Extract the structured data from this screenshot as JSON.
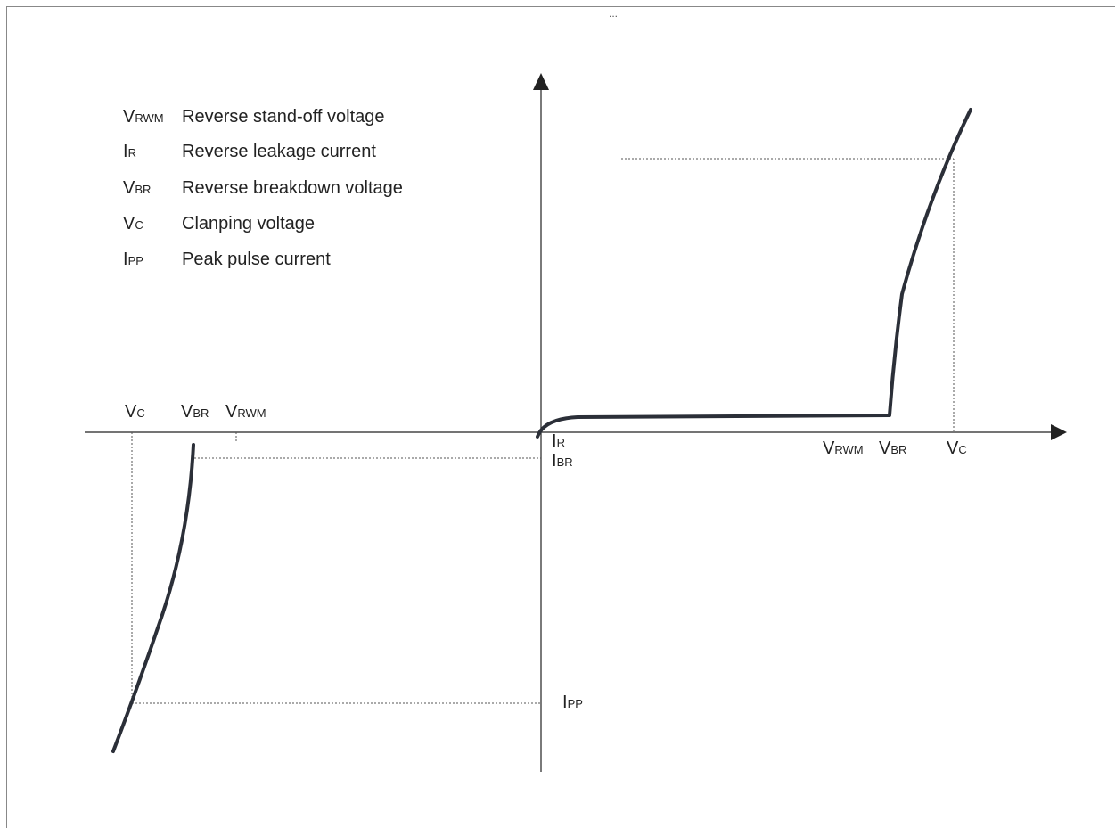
{
  "top_marker": "...",
  "legend": [
    {
      "base": "V",
      "sub": "RWM",
      "desc": "Reverse stand-off voltage"
    },
    {
      "base": "I",
      "sub": "R",
      "desc": "Reverse leakage current"
    },
    {
      "base": "V",
      "sub": "BR",
      "desc": "Reverse breakdown voltage"
    },
    {
      "base": "V",
      "sub": "C",
      "desc": "Clanping voltage"
    },
    {
      "base": "I",
      "sub": "PP",
      "desc": "Peak pulse current"
    }
  ],
  "labels": {
    "neg_vc": {
      "base": "V",
      "sub": "C"
    },
    "neg_vbr": {
      "base": "V",
      "sub": "BR"
    },
    "neg_vrwm": {
      "base": "V",
      "sub": "RWM"
    },
    "ir": {
      "base": "I",
      "sub": "R"
    },
    "ibr": {
      "base": "I",
      "sub": "BR"
    },
    "pos_vrwm": {
      "base": "V",
      "sub": "RWM"
    },
    "pos_vbr": {
      "base": "V",
      "sub": "BR"
    },
    "pos_vc": {
      "base": "V",
      "sub": "C"
    },
    "ipp": {
      "base": "I",
      "sub": "PP"
    }
  },
  "colors": {
    "curve": "#2b2f38",
    "axis": "#222222",
    "guide": "#555555"
  }
}
